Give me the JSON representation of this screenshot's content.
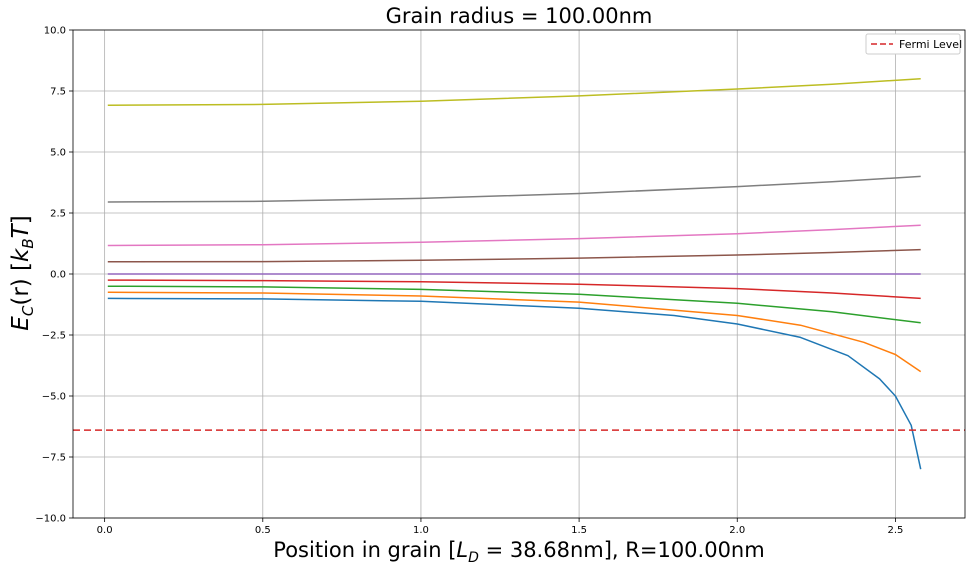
{
  "chart_data": {
    "type": "line",
    "title": "Grain radius = 100.00nm",
    "xlabel": "Position in grain [L_D = 38.68nm], R=100.00nm",
    "xlabel_parts": {
      "pre": "Position in grain [",
      "var": "L",
      "sub": "D",
      "post": " = 38.68nm], R=100.00nm"
    },
    "ylabel": "E_C(r) [k_B T]",
    "ylabel_parts": {
      "e": "E",
      "esub": "C",
      "mid": "(r) [",
      "k": "k",
      "ksub": "B",
      "t": "T",
      "close": "]"
    },
    "xlim": [
      -0.1,
      2.72
    ],
    "ylim": [
      -10.0,
      10.0
    ],
    "xticks": [
      "0.0",
      "0.5",
      "1.0",
      "1.5",
      "2.0",
      "2.5"
    ],
    "xtick_values": [
      0.0,
      0.5,
      1.0,
      1.5,
      2.0,
      2.5
    ],
    "yticks": [
      "−10.0",
      "−7.5",
      "−5.0",
      "−2.5",
      "0.0",
      "2.5",
      "5.0",
      "7.5",
      "10.0"
    ],
    "ytick_values": [
      -10.0,
      -7.5,
      -5.0,
      -2.5,
      0.0,
      2.5,
      5.0,
      7.5,
      10.0
    ],
    "grid": true,
    "legend_position": "top-right",
    "fermi_level": {
      "name": "Fermi Level",
      "y": -6.4,
      "color": "#d62728",
      "style": "dashed"
    },
    "series": [
      {
        "color": "#1f77b4",
        "x": [
          0.01,
          0.5,
          1.0,
          1.5,
          1.8,
          2.0,
          2.2,
          2.35,
          2.45,
          2.5,
          2.55,
          2.58
        ],
        "y": [
          -1.0,
          -1.02,
          -1.12,
          -1.4,
          -1.7,
          -2.05,
          -2.6,
          -3.35,
          -4.3,
          -5.0,
          -6.2,
          -8.0
        ]
      },
      {
        "color": "#ff7f0e",
        "x": [
          0.01,
          0.5,
          1.0,
          1.5,
          2.0,
          2.2,
          2.4,
          2.5,
          2.58
        ],
        "y": [
          -0.75,
          -0.78,
          -0.9,
          -1.15,
          -1.7,
          -2.1,
          -2.8,
          -3.3,
          -4.0
        ]
      },
      {
        "color": "#2ca02c",
        "x": [
          0.01,
          0.5,
          1.0,
          1.5,
          2.0,
          2.3,
          2.58
        ],
        "y": [
          -0.5,
          -0.53,
          -0.63,
          -0.83,
          -1.2,
          -1.55,
          -2.0
        ]
      },
      {
        "color": "#d62728",
        "x": [
          0.01,
          0.5,
          1.0,
          1.5,
          2.0,
          2.3,
          2.58
        ],
        "y": [
          -0.25,
          -0.27,
          -0.32,
          -0.42,
          -0.6,
          -0.78,
          -1.0
        ]
      },
      {
        "color": "#9467bd",
        "x": [
          0.01,
          1.0,
          2.0,
          2.58
        ],
        "y": [
          0.0,
          0.0,
          0.0,
          0.0
        ]
      },
      {
        "color": "#8c564b",
        "x": [
          0.01,
          0.5,
          1.0,
          1.5,
          2.0,
          2.3,
          2.58
        ],
        "y": [
          0.5,
          0.51,
          0.56,
          0.65,
          0.78,
          0.88,
          1.0
        ]
      },
      {
        "color": "#e377c2",
        "x": [
          0.01,
          0.5,
          1.0,
          1.5,
          2.0,
          2.3,
          2.58
        ],
        "y": [
          1.17,
          1.2,
          1.3,
          1.45,
          1.65,
          1.82,
          2.0
        ]
      },
      {
        "color": "#7f7f7f",
        "x": [
          0.01,
          0.5,
          1.0,
          1.5,
          2.0,
          2.3,
          2.58
        ],
        "y": [
          2.95,
          2.98,
          3.1,
          3.3,
          3.58,
          3.78,
          4.0
        ]
      },
      {
        "color": "#bcbd22",
        "x": [
          0.01,
          0.5,
          1.0,
          1.5,
          2.0,
          2.3,
          2.58
        ],
        "y": [
          6.92,
          6.95,
          7.08,
          7.3,
          7.58,
          7.78,
          8.0
        ]
      }
    ]
  }
}
